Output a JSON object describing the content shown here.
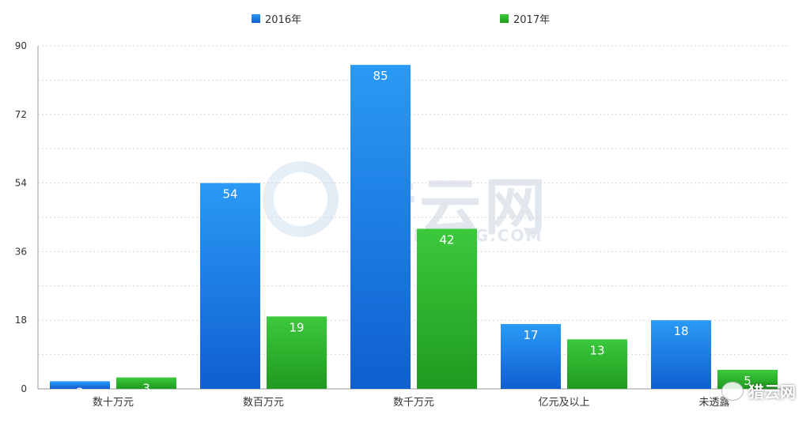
{
  "chart_data": {
    "type": "bar",
    "title": "",
    "xlabel": "",
    "ylabel": "",
    "ylim": [
      0,
      90
    ],
    "yticks": [
      "0",
      "18",
      "36",
      "54",
      "72",
      "90"
    ],
    "categories": [
      "数十万元",
      "数百万元",
      "数千万元",
      "亿元及以上",
      "未透露"
    ],
    "series": [
      {
        "name": "2016年",
        "color": "#1a7be0",
        "values": [
          2,
          54,
          85,
          17,
          18
        ]
      },
      {
        "name": "2017年",
        "color": "#2bb52b",
        "values": [
          3,
          19,
          42,
          13,
          5
        ]
      }
    ],
    "grid": true,
    "legend_position": "top"
  },
  "watermark": {
    "center_text": "猎云网",
    "center_sub": "LIEYUNWANG.COM",
    "corner_text": "猎云网"
  }
}
